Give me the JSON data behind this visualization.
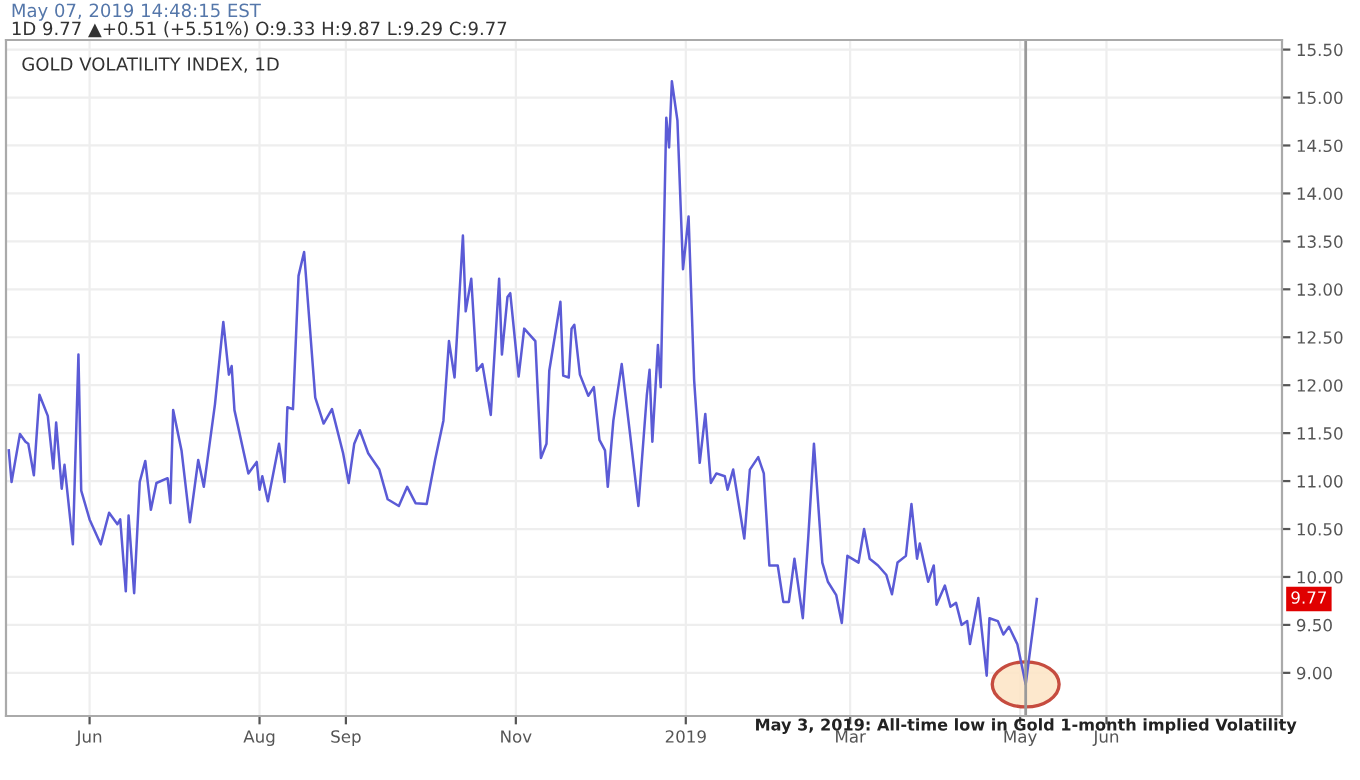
{
  "chart_data": {
    "type": "line",
    "title": "GOLD VOLATILITY INDEX, 1D",
    "subtitle": "1D 9.77 ▲+0.51 (+5.51%) O:9.33 H:9.87 L:9.29 C:9.77",
    "annotations": [
      {
        "text": "May 3, 2019: All-time low in Gold 1-month implied Volatility",
        "x": "2019-05-03",
        "y": 8.88
      },
      "9.77",
      "May 07, 2019 14:48:15 EST"
    ],
    "series": [
      {
        "color": "#5b5bd6",
        "x": [
          "2018-05-03",
          "2018-05-04",
          "2018-05-07",
          "2018-05-09",
          "2018-05-10",
          "2018-05-12",
          "2018-05-14",
          "2018-05-17",
          "2018-05-19",
          "2018-05-20",
          "2018-05-22",
          "2018-05-23",
          "2018-05-26",
          "2018-05-28",
          "2018-05-29",
          "2018-06-01",
          "2018-06-05",
          "2018-06-08",
          "2018-06-11",
          "2018-06-12",
          "2018-06-14",
          "2018-06-15",
          "2018-06-17",
          "2018-06-19",
          "2018-06-21",
          "2018-06-23",
          "2018-06-25",
          "2018-06-29",
          "2018-06-30",
          "2018-07-01",
          "2018-07-04",
          "2018-07-07",
          "2018-07-10",
          "2018-07-12",
          "2018-07-16",
          "2018-07-19",
          "2018-07-21",
          "2018-07-22",
          "2018-07-23",
          "2018-07-28",
          "2018-07-31",
          "2018-08-01",
          "2018-08-02",
          "2018-08-04",
          "2018-08-08",
          "2018-08-10",
          "2018-08-11",
          "2018-08-13",
          "2018-08-15",
          "2018-08-17",
          "2018-08-21",
          "2018-08-24",
          "2018-08-27",
          "2018-08-31",
          "2018-09-02",
          "2018-09-04",
          "2018-09-06",
          "2018-09-09",
          "2018-09-13",
          "2018-09-16",
          "2018-09-20",
          "2018-09-23",
          "2018-09-26",
          "2018-09-30",
          "2018-10-03",
          "2018-10-06",
          "2018-10-08",
          "2018-10-10",
          "2018-10-13",
          "2018-10-14",
          "2018-10-16",
          "2018-10-18",
          "2018-10-20",
          "2018-10-23",
          "2018-10-26",
          "2018-10-27",
          "2018-10-29",
          "2018-10-30",
          "2018-11-02",
          "2018-11-04",
          "2018-11-08",
          "2018-11-10",
          "2018-11-12",
          "2018-11-13",
          "2018-11-17",
          "2018-11-18",
          "2018-11-20",
          "2018-11-21",
          "2018-11-22",
          "2018-11-24",
          "2018-11-27",
          "2018-11-29",
          "2018-12-01",
          "2018-12-03",
          "2018-12-04",
          "2018-12-06",
          "2018-12-09",
          "2018-12-12",
          "2018-12-15",
          "2018-12-18",
          "2018-12-19",
          "2018-12-20",
          "2018-12-22",
          "2018-12-23",
          "2018-12-25",
          "2018-12-26",
          "2018-12-27",
          "2018-12-29",
          "2018-12-31",
          "2019-01-02",
          "2019-01-04",
          "2019-01-06",
          "2019-01-08",
          "2019-01-10",
          "2019-01-12",
          "2019-01-15",
          "2019-01-16",
          "2019-01-18",
          "2019-01-22",
          "2019-01-24",
          "2019-01-27",
          "2019-01-29",
          "2019-01-31",
          "2019-02-03",
          "2019-02-05",
          "2019-02-07",
          "2019-02-09",
          "2019-02-12",
          "2019-02-14",
          "2019-02-16",
          "2019-02-19",
          "2019-02-21",
          "2019-02-24",
          "2019-02-26",
          "2019-02-28",
          "2019-03-04",
          "2019-03-06",
          "2019-03-08",
          "2019-03-11",
          "2019-03-14",
          "2019-03-16",
          "2019-03-18",
          "2019-03-21",
          "2019-03-23",
          "2019-03-25",
          "2019-03-26",
          "2019-03-29",
          "2019-03-31",
          "2019-04-01",
          "2019-04-04",
          "2019-04-06",
          "2019-04-08",
          "2019-04-10",
          "2019-04-12",
          "2019-04-13",
          "2019-04-16",
          "2019-04-19",
          "2019-04-20",
          "2019-04-23",
          "2019-04-25",
          "2019-04-27",
          "2019-04-30",
          "2019-05-03",
          "2019-05-07"
        ],
        "values": [
          11.32,
          10.99,
          11.49,
          11.41,
          11.39,
          11.06,
          11.9,
          11.68,
          11.13,
          11.61,
          10.92,
          11.17,
          10.34,
          12.32,
          10.9,
          10.6,
          10.34,
          10.67,
          10.55,
          10.6,
          9.85,
          10.64,
          9.83,
          10.99,
          11.21,
          10.7,
          10.98,
          11.03,
          10.77,
          11.74,
          11.32,
          10.57,
          11.22,
          10.94,
          11.8,
          12.66,
          12.11,
          12.2,
          11.74,
          11.08,
          11.2,
          10.91,
          11.05,
          10.79,
          11.39,
          10.99,
          11.77,
          11.75,
          13.14,
          13.39,
          11.87,
          11.6,
          11.75,
          11.29,
          10.98,
          11.39,
          11.53,
          11.29,
          11.12,
          10.81,
          10.74,
          10.94,
          10.77,
          10.76,
          11.22,
          11.63,
          12.46,
          12.08,
          13.56,
          12.77,
          13.11,
          12.15,
          12.22,
          11.69,
          13.11,
          12.32,
          12.92,
          12.96,
          12.09,
          12.59,
          12.46,
          11.24,
          11.39,
          12.15,
          12.87,
          12.1,
          12.08,
          12.59,
          12.63,
          12.11,
          11.89,
          11.98,
          11.43,
          11.32,
          10.94,
          11.63,
          12.22,
          11.49,
          10.74,
          11.89,
          12.16,
          11.41,
          12.42,
          11.98,
          14.79,
          14.48,
          15.17,
          14.76,
          13.21,
          13.76,
          12.05,
          11.19,
          11.7,
          10.98,
          11.08,
          11.05,
          10.91,
          11.12,
          10.4,
          11.12,
          11.25,
          11.08,
          10.12,
          10.12,
          9.74,
          9.74,
          10.19,
          9.57,
          10.43,
          11.39,
          10.15,
          9.95,
          9.81,
          9.52,
          10.22,
          10.15,
          10.5,
          10.19,
          10.12,
          10.02,
          9.82,
          10.15,
          10.22,
          10.76,
          10.19,
          10.35,
          9.95,
          10.12,
          9.71,
          9.91,
          9.69,
          9.73,
          9.5,
          9.54,
          9.3,
          9.78,
          8.97,
          9.57,
          9.54,
          9.4,
          9.48,
          9.3,
          8.88,
          9.77
        ]
      }
    ],
    "xlim": [
      "2018-05-02",
      "2019-08-03"
    ],
    "xticks": [
      {
        "value": "2018-06-01",
        "label": "Jun"
      },
      {
        "value": "2018-08-01",
        "label": "Aug"
      },
      {
        "value": "2018-09-01",
        "label": "Sep"
      },
      {
        "value": "2018-11-01",
        "label": "Nov"
      },
      {
        "value": "2019-01-01",
        "label": "2019"
      },
      {
        "value": "2019-03-01",
        "label": "Mar"
      },
      {
        "value": "2019-05-01",
        "label": "May"
      },
      {
        "value": "2019-06-01",
        "label": "Jun"
      }
    ],
    "ylim": [
      8.55,
      15.6
    ],
    "yticks": [
      {
        "value": 9,
        "label": "9.00"
      },
      {
        "value": 9.5,
        "label": "9.50"
      },
      {
        "value": 10,
        "label": "10.00"
      },
      {
        "value": 10.5,
        "label": "10.50"
      },
      {
        "value": 11,
        "label": "11.00"
      },
      {
        "value": 11.5,
        "label": "11.50"
      },
      {
        "value": 12,
        "label": "12.00"
      },
      {
        "value": 12.5,
        "label": "12.50"
      },
      {
        "value": 13,
        "label": "13.00"
      },
      {
        "value": 13.5,
        "label": "13.50"
      },
      {
        "value": 14,
        "label": "14.00"
      },
      {
        "value": 14.5,
        "label": "14.50"
      },
      {
        "value": 15,
        "label": "15.00"
      },
      {
        "value": 15.5,
        "label": "15.50"
      }
    ],
    "ref_lines": [
      {
        "axis": "x",
        "value": "2019-05-03",
        "color": "#9a9a9a"
      }
    ],
    "grid": true,
    "marker": "none",
    "line_style": "solid"
  }
}
